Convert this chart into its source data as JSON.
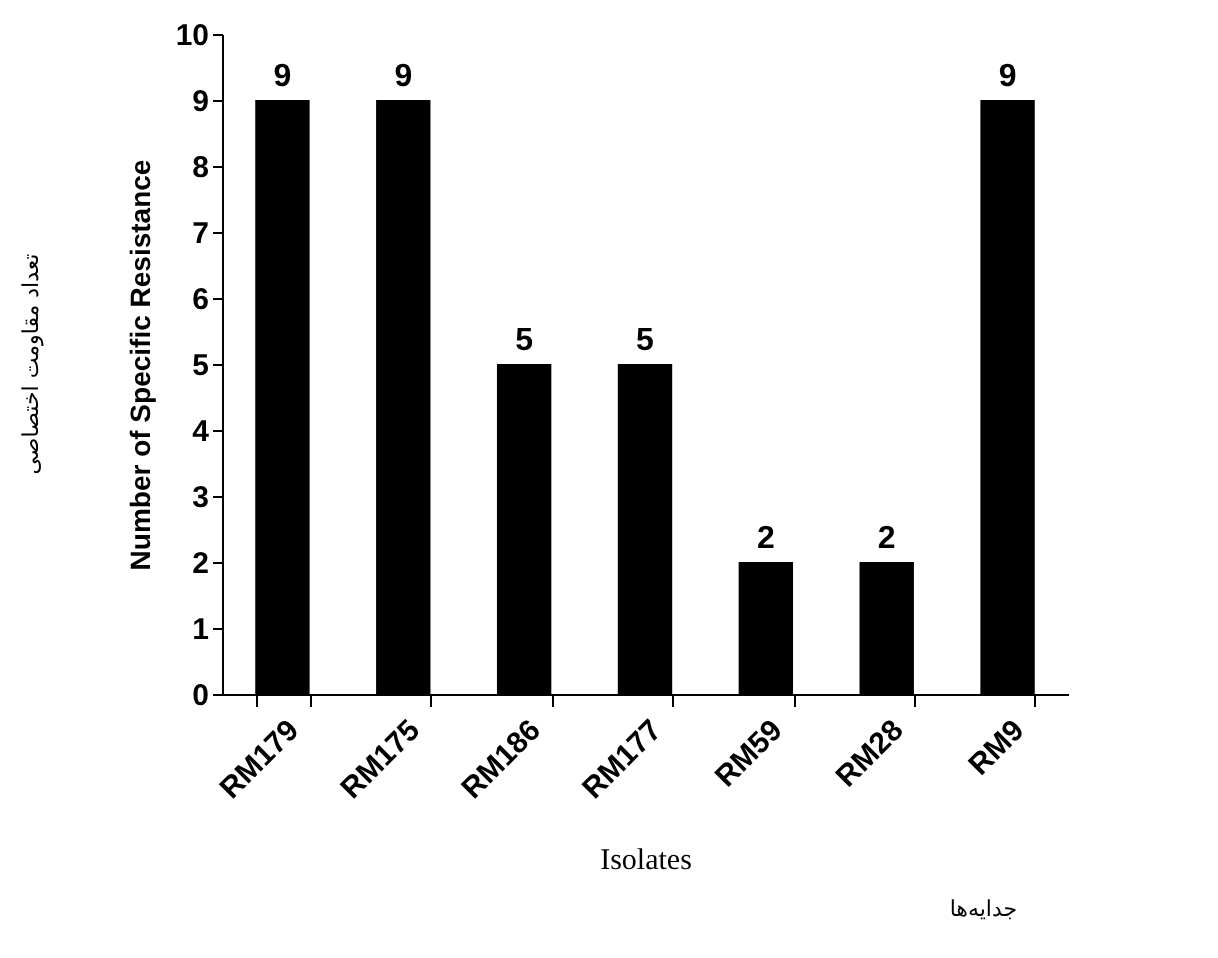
{
  "chart_data": {
    "type": "bar",
    "categories": [
      "RM179",
      "RM175",
      "RM186",
      "RM177",
      "RM59",
      "RM28",
      "RM9"
    ],
    "values": [
      9,
      9,
      5,
      5,
      2,
      2,
      9
    ],
    "color": "#000000",
    "xlabel": "Isolates",
    "ylabel": "Number of Specific Resistance",
    "annotations": [
      "تعداد مقاومت اختصاصی",
      "جدایه‌ها"
    ],
    "ylim": [
      0,
      10
    ],
    "yticks": [
      0,
      1,
      2,
      3,
      4,
      5,
      6,
      7,
      8,
      9,
      10
    ],
    "data_labels": true,
    "grid": false
  }
}
